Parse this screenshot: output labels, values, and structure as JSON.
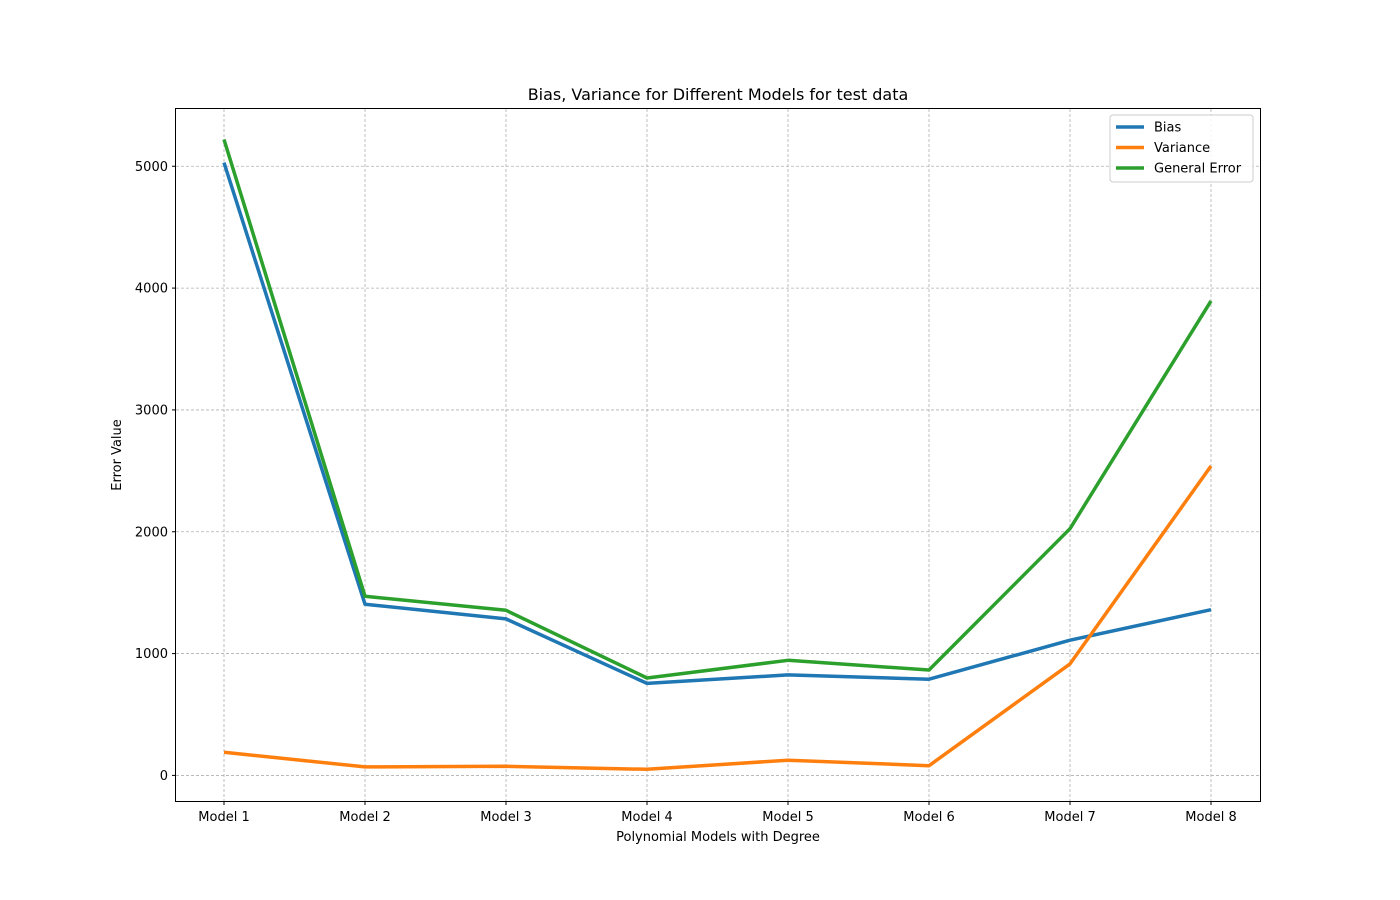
{
  "chart_data": {
    "type": "line",
    "title": "Bias, Variance for Different Models for test data",
    "xlabel": "Polynomial Models with Degree",
    "ylabel": "Error Value",
    "categories": [
      "Model 1",
      "Model 2",
      "Model 3",
      "Model 4",
      "Model 5",
      "Model 6",
      "Model 7",
      "Model 8"
    ],
    "yticks": [
      0,
      1000,
      2000,
      3000,
      4000,
      5000
    ],
    "ylim": [
      -210,
      5470
    ],
    "grid": true,
    "legend_position": "top-right",
    "series": [
      {
        "name": "Bias",
        "color": "#1f77b4",
        "values": [
          5030,
          1405,
          1285,
          755,
          825,
          790,
          1110,
          1360
        ]
      },
      {
        "name": "Variance",
        "color": "#ff7f0e",
        "values": [
          190,
          70,
          75,
          50,
          125,
          80,
          915,
          2540
        ]
      },
      {
        "name": "General Error",
        "color": "#2ca02c",
        "values": [
          5220,
          1470,
          1355,
          800,
          945,
          865,
          2025,
          3895
        ]
      }
    ]
  }
}
